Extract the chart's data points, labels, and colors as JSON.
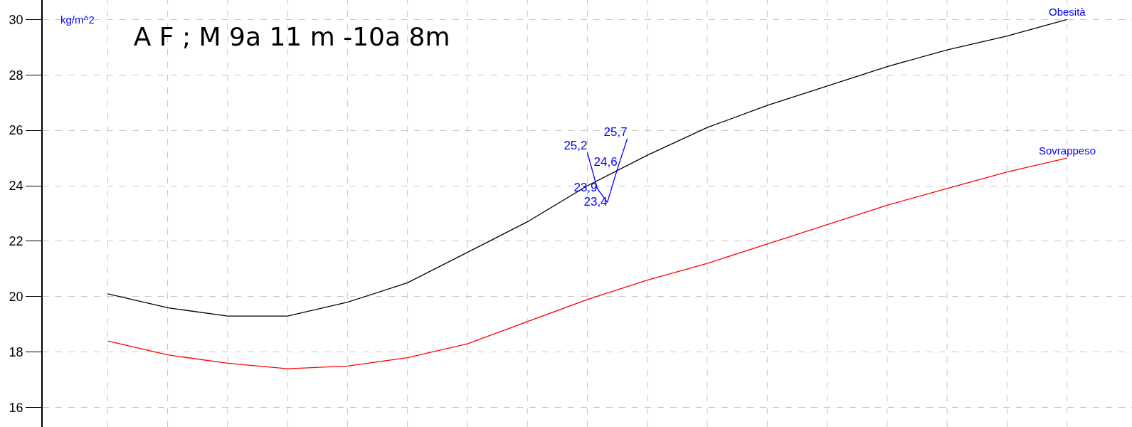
{
  "chart_data": {
    "type": "line",
    "title": "A F ; M 9a 11 m -10a 8m",
    "ylabel": "kg/m^2",
    "categories": [
      null,
      null,
      null,
      null,
      null,
      null,
      null,
      null,
      null,
      null,
      null,
      null,
      null,
      null,
      null,
      null,
      null,
      null,
      null,
      null,
      null,
      null,
      null,
      null,
      null,
      null,
      null,
      null,
      null,
      null,
      null,
      null,
      null,
      null,
      null,
      null,
      null,
      null,
      null,
      null,
      null,
      null,
      null,
      null,
      null,
      null,
      null,
      null,
      null,
      null,
      null,
      null,
      null,
      null,
      null,
      null,
      null,
      null,
      null,
      null,
      null,
      null,
      null,
      null,
      null,
      null,
      null,
      null,
      null,
      null,
      null,
      null,
      null,
      null,
      null,
      null,
      null,
      null,
      null,
      null,
      null,
      null,
      null,
      null,
      null,
      null,
      null,
      null,
      null,
      null,
      null,
      null,
      null,
      null,
      null,
      null,
      null,
      null,
      null,
      null,
      null,
      null,
      null,
      null,
      null,
      null,
      null,
      null,
      null
    ],
    "ylim": [
      15.3,
      30.7
    ],
    "yticks": [
      16,
      18,
      20,
      22,
      24,
      26,
      28,
      30
    ],
    "grid": true,
    "tick_labels": "y",
    "series": [
      {
        "name": "Obesità",
        "color": "#000000",
        "values": [
          null,
          null,
          null,
          null,
          null,
          null,
          20.1,
          null,
          null,
          null,
          null,
          null,
          19.6,
          null,
          null,
          null,
          null,
          null,
          19.3,
          null,
          null,
          null,
          null,
          null,
          19.3,
          null,
          null,
          null,
          null,
          null,
          19.8,
          null,
          null,
          null,
          null,
          null,
          20.5,
          null,
          null,
          null,
          null,
          null,
          21.6,
          null,
          null,
          null,
          null,
          null,
          22.7,
          null,
          null,
          null,
          null,
          null,
          24.0,
          null,
          null,
          null,
          null,
          null,
          25.1,
          null,
          null,
          null,
          null,
          null,
          26.1,
          null,
          null,
          null,
          null,
          null,
          26.9,
          null,
          null,
          null,
          null,
          null,
          27.6,
          null,
          null,
          null,
          null,
          null,
          28.3,
          null,
          null,
          null,
          null,
          null,
          28.9,
          null,
          null,
          null,
          null,
          null,
          29.4,
          null,
          null,
          null,
          null,
          null,
          30.0,
          null,
          null,
          null,
          null,
          null,
          null
        ]
      },
      {
        "name": "Sovrappeso",
        "color": "#ff0000",
        "values": [
          null,
          null,
          null,
          null,
          null,
          null,
          18.4,
          null,
          null,
          null,
          null,
          null,
          17.9,
          null,
          null,
          null,
          null,
          null,
          17.6,
          null,
          null,
          null,
          null,
          null,
          17.4,
          null,
          null,
          null,
          null,
          null,
          17.5,
          null,
          null,
          null,
          null,
          null,
          17.8,
          null,
          null,
          null,
          null,
          null,
          18.3,
          null,
          null,
          null,
          null,
          null,
          19.1,
          null,
          null,
          null,
          null,
          null,
          19.9,
          null,
          null,
          null,
          null,
          null,
          20.6,
          null,
          null,
          null,
          null,
          null,
          21.2,
          null,
          null,
          null,
          null,
          null,
          21.9,
          null,
          null,
          null,
          null,
          null,
          22.6,
          null,
          null,
          null,
          null,
          null,
          23.3,
          null,
          null,
          null,
          null,
          null,
          23.9,
          null,
          null,
          null,
          null,
          null,
          24.5,
          null,
          null,
          null,
          null,
          null,
          25.0,
          null,
          null,
          null,
          null,
          null,
          null
        ]
      },
      {
        "color": "#0000ff",
        "values": [
          null,
          null,
          null,
          null,
          null,
          null,
          null,
          null,
          null,
          null,
          null,
          null,
          null,
          null,
          null,
          null,
          null,
          null,
          null,
          null,
          null,
          null,
          null,
          null,
          null,
          null,
          null,
          null,
          null,
          null,
          null,
          null,
          null,
          null,
          null,
          null,
          null,
          null,
          null,
          null,
          null,
          null,
          null,
          null,
          null,
          null,
          null,
          null,
          null,
          null,
          null,
          null,
          null,
          null,
          25.2,
          23.9,
          23.4,
          24.6,
          25.7,
          null,
          null,
          null,
          null,
          null,
          null,
          null,
          null,
          null,
          null,
          null,
          null,
          null,
          null,
          null,
          null,
          null,
          null,
          null,
          null,
          null,
          null,
          null,
          null,
          null,
          null,
          null,
          null,
          null,
          null,
          null,
          null,
          null,
          null,
          null,
          null,
          null,
          null,
          null,
          null,
          null,
          null,
          null,
          null,
          null,
          null,
          null,
          null,
          null,
          null
        ],
        "value_labels": [
          null,
          null,
          null,
          null,
          null,
          null,
          null,
          null,
          null,
          null,
          null,
          null,
          null,
          null,
          null,
          null,
          null,
          null,
          null,
          null,
          null,
          null,
          null,
          null,
          null,
          null,
          null,
          null,
          null,
          null,
          null,
          null,
          null,
          null,
          null,
          null,
          null,
          null,
          null,
          null,
          null,
          null,
          null,
          null,
          null,
          null,
          null,
          null,
          null,
          null,
          null,
          null,
          null,
          null,
          "25,2",
          "23,9",
          "23,4",
          "24,6",
          "25,7",
          null,
          null,
          null,
          null,
          null,
          null,
          null,
          null,
          null,
          null,
          null,
          null,
          null,
          null,
          null,
          null,
          null,
          null,
          null,
          null,
          null,
          null,
          null,
          null,
          null,
          null,
          null,
          null,
          null,
          null,
          null,
          null,
          null,
          null,
          null,
          null,
          null,
          null,
          null,
          null,
          null,
          null,
          null,
          null,
          null,
          null,
          null,
          null,
          null,
          null
        ]
      }
    ]
  }
}
